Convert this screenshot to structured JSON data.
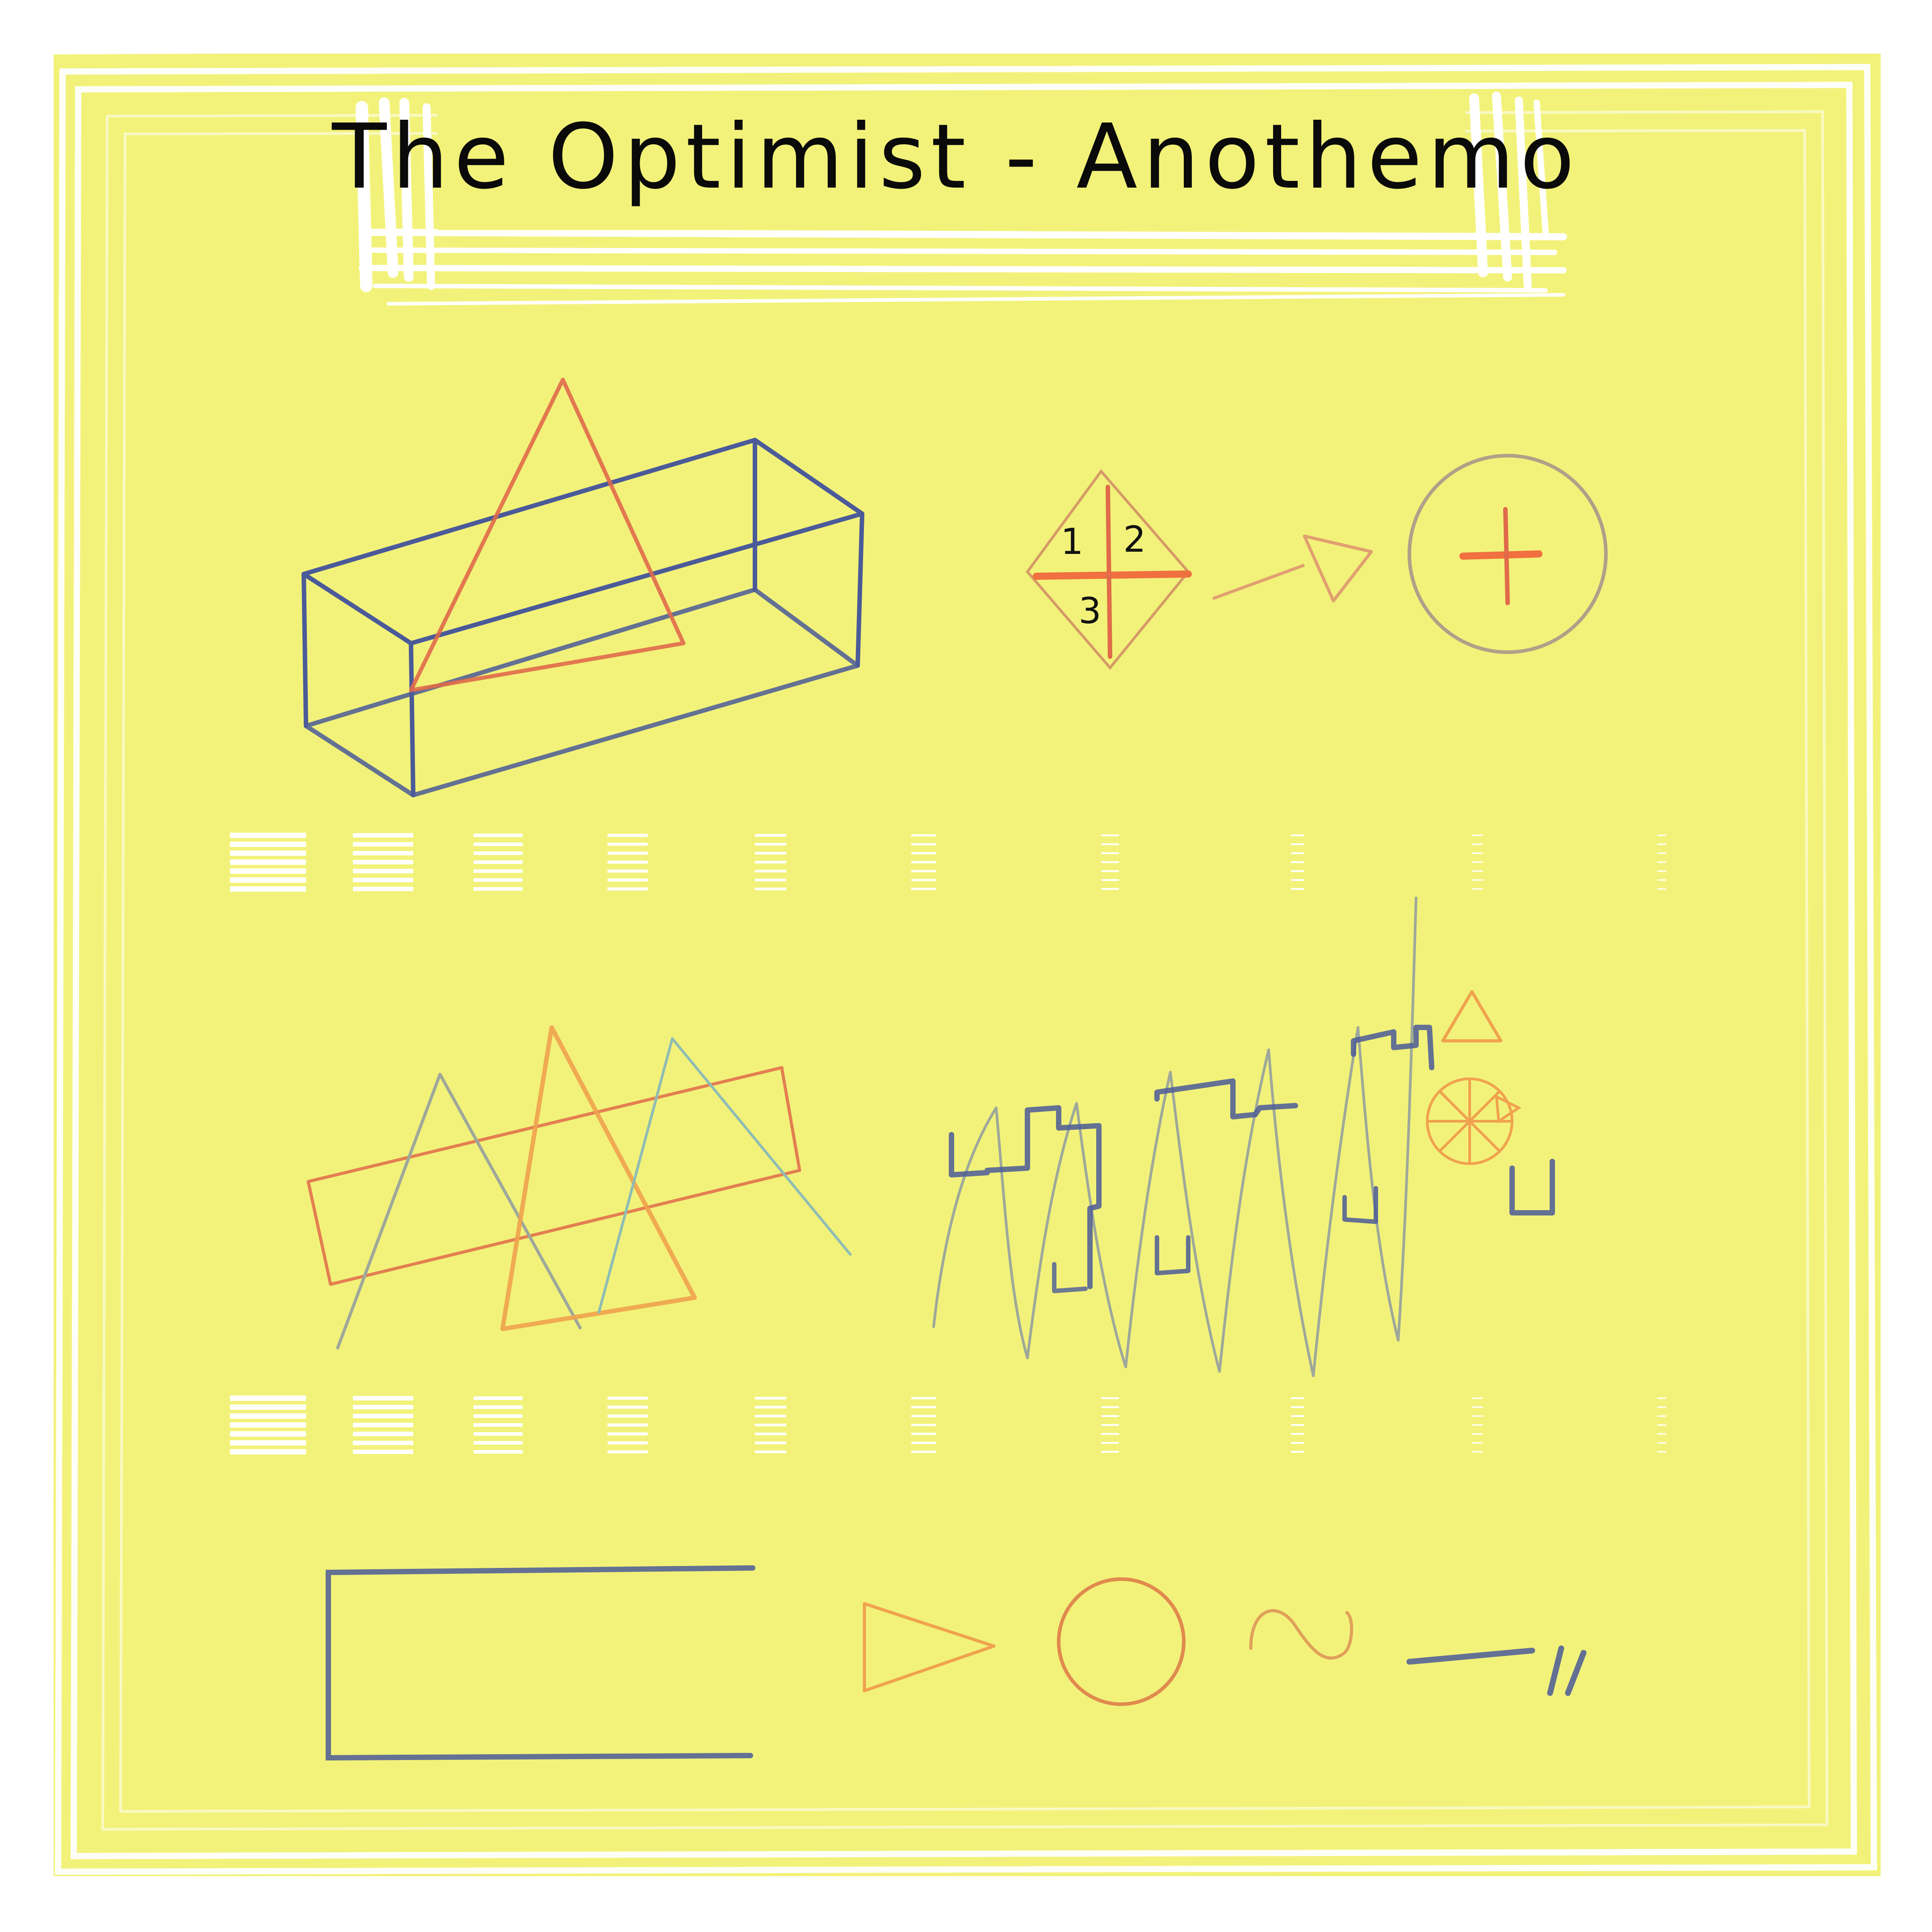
{
  "title": "The Optimist - Anothemo",
  "diagram_labels": [
    "1",
    "2",
    "3"
  ],
  "colors": {
    "background": "#f2f27a",
    "frame": "#ffffff",
    "blue": "#4b5a98",
    "red": "#e06a4a",
    "orange": "#f0a24e",
    "grey": "#9ea89a",
    "teal": "#8fbcb4",
    "text": "#0a0a0a"
  },
  "icons": [
    "box-icon",
    "triangle-icon",
    "diamond-icon",
    "arrow-icon",
    "circle-plus-icon",
    "wheel-icon",
    "wave-icon",
    "line-icon",
    "rectangle-bracket-icon"
  ]
}
